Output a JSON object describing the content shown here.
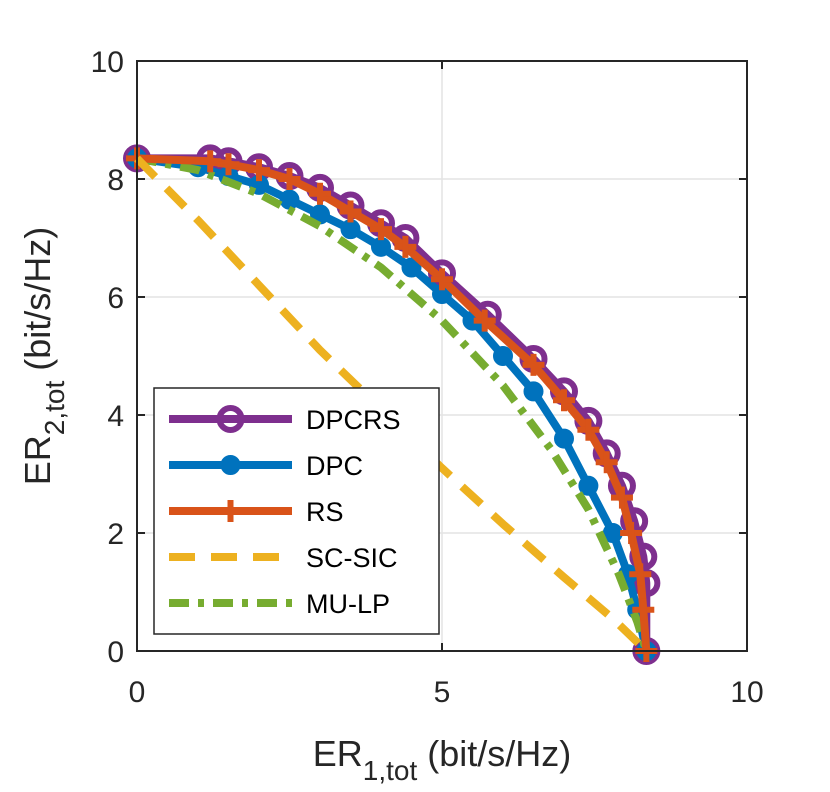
{
  "chart_data": {
    "type": "line",
    "title": "",
    "xlabel": {
      "main": "ER",
      "sub": "1,tot",
      "unit": " (bit/s/Hz)"
    },
    "ylabel": {
      "main": "ER",
      "sub": "2,tot",
      "unit": " (bit/s/Hz)"
    },
    "xlim": [
      0,
      10
    ],
    "ylim": [
      0,
      10
    ],
    "xticks": [
      0,
      5,
      10
    ],
    "yticks": [
      0,
      2,
      4,
      6,
      8,
      10
    ],
    "xtick_labels": [
      "0",
      "5",
      "10"
    ],
    "ytick_labels": [
      "0",
      "2",
      "4",
      "6",
      "8",
      "10"
    ],
    "grid": true,
    "legend_position": "bottom-left",
    "series": [
      {
        "name": "DPCRS",
        "color": "#7E2F8E",
        "line_style": "solid",
        "marker": "circle",
        "points": [
          [
            0,
            8.35
          ],
          [
            1.2,
            8.35
          ],
          [
            1.5,
            8.3
          ],
          [
            2.0,
            8.2
          ],
          [
            2.5,
            8.05
          ],
          [
            3.0,
            7.85
          ],
          [
            3.5,
            7.55
          ],
          [
            4.0,
            7.25
          ],
          [
            4.4,
            7.0
          ],
          [
            5.0,
            6.4
          ],
          [
            5.75,
            5.7
          ],
          [
            6.5,
            4.95
          ],
          [
            7.0,
            4.4
          ],
          [
            7.4,
            3.9
          ],
          [
            7.7,
            3.35
          ],
          [
            7.95,
            2.8
          ],
          [
            8.15,
            2.2
          ],
          [
            8.3,
            1.6
          ],
          [
            8.35,
            1.15
          ],
          [
            8.35,
            0
          ]
        ]
      },
      {
        "name": "DPC",
        "color": "#0072BD",
        "line_style": "solid",
        "marker": "filled-circle",
        "points": [
          [
            0,
            8.35
          ],
          [
            1.0,
            8.2
          ],
          [
            1.5,
            8.05
          ],
          [
            2.0,
            7.9
          ],
          [
            2.5,
            7.65
          ],
          [
            3.0,
            7.4
          ],
          [
            3.5,
            7.15
          ],
          [
            4.0,
            6.85
          ],
          [
            4.5,
            6.5
          ],
          [
            5.0,
            6.05
          ],
          [
            5.5,
            5.6
          ],
          [
            6.0,
            5.0
          ],
          [
            6.5,
            4.4
          ],
          [
            7.0,
            3.6
          ],
          [
            7.4,
            2.8
          ],
          [
            7.8,
            2.0
          ],
          [
            8.05,
            1.3
          ],
          [
            8.2,
            0.7
          ],
          [
            8.35,
            0
          ]
        ]
      },
      {
        "name": "RS",
        "color": "#D95319",
        "line_style": "solid",
        "marker": "plus",
        "points": [
          [
            0,
            8.35
          ],
          [
            1.2,
            8.3
          ],
          [
            1.5,
            8.25
          ],
          [
            2.0,
            8.15
          ],
          [
            2.5,
            8.0
          ],
          [
            3.0,
            7.75
          ],
          [
            3.5,
            7.45
          ],
          [
            4.0,
            7.15
          ],
          [
            4.4,
            6.85
          ],
          [
            5.0,
            6.3
          ],
          [
            5.7,
            5.6
          ],
          [
            6.5,
            4.85
          ],
          [
            7.0,
            4.25
          ],
          [
            7.4,
            3.75
          ],
          [
            7.7,
            3.2
          ],
          [
            7.95,
            2.6
          ],
          [
            8.1,
            2.0
          ],
          [
            8.25,
            1.3
          ],
          [
            8.3,
            0.7
          ],
          [
            8.35,
            0
          ]
        ]
      },
      {
        "name": "SC-SIC",
        "color": "#EDB120",
        "line_style": "dashed",
        "marker": "none",
        "points": [
          [
            0,
            8.35
          ],
          [
            1.0,
            7.3
          ],
          [
            2.0,
            6.2
          ],
          [
            3.0,
            5.1
          ],
          [
            4.0,
            4.1
          ],
          [
            5.0,
            3.1
          ],
          [
            6.0,
            2.15
          ],
          [
            7.0,
            1.25
          ],
          [
            7.8,
            0.55
          ],
          [
            8.35,
            0
          ]
        ]
      },
      {
        "name": "MU-LP",
        "color": "#77AC30",
        "line_style": "dashdot",
        "marker": "none",
        "points": [
          [
            0,
            8.35
          ],
          [
            1.0,
            8.15
          ],
          [
            2.0,
            7.75
          ],
          [
            3.0,
            7.2
          ],
          [
            4.0,
            6.5
          ],
          [
            5.0,
            5.6
          ],
          [
            6.0,
            4.5
          ],
          [
            6.8,
            3.4
          ],
          [
            7.4,
            2.4
          ],
          [
            7.9,
            1.3
          ],
          [
            8.2,
            0.5
          ],
          [
            8.35,
            0
          ]
        ]
      }
    ]
  }
}
